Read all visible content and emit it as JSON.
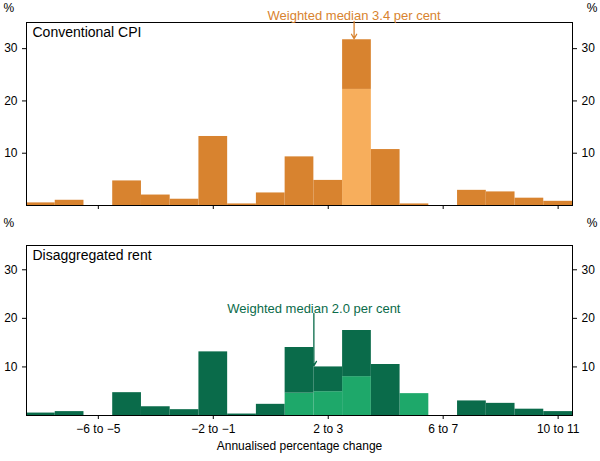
{
  "chart_data": [
    {
      "type": "histogram",
      "title": "Conventional CPI",
      "bins": [
        -8,
        -7,
        -6,
        -5,
        -4,
        -3,
        -2,
        -1,
        0,
        1,
        2,
        3,
        4,
        5,
        6,
        7,
        8,
        9,
        10,
        11
      ],
      "series": [
        {
          "color": "#F7AE5C",
          "values": [
            0,
            0,
            0,
            0,
            0,
            0,
            0,
            0,
            0,
            0,
            0,
            22.2,
            0,
            0,
            0,
            0,
            0,
            0,
            0
          ]
        },
        {
          "color": "#D8832F",
          "values": [
            0.5,
            1.0,
            0,
            4.7,
            2.0,
            1.2,
            13.2,
            0.3,
            2.4,
            9.3,
            4.8,
            9.5,
            10.7,
            0.3,
            0,
            2.9,
            2.6,
            1.4,
            0.8
          ]
        }
      ],
      "stacked": true,
      "xlim": [
        -8,
        11
      ],
      "xticks": [
        {
          "value": -5.5,
          "label": "−6 to −5"
        },
        {
          "value": -1.5,
          "label": "−2 to −1"
        },
        {
          "value": 2.5,
          "label": "2 to 3"
        },
        {
          "value": 6.5,
          "label": "6 to 7"
        },
        {
          "value": 10.5,
          "label": "10 to 11"
        }
      ],
      "y_label": "%",
      "ylim": [
        0,
        35
      ],
      "yticks": [
        10,
        20,
        30
      ],
      "grid": false,
      "tick_labels": "y",
      "annotations": [
        {
          "text": "Weighted median 3.4 per cent",
          "x": 3.4,
          "y": 31.7,
          "color": "#D8832F"
        }
      ]
    },
    {
      "type": "histogram",
      "title": "Disaggregated rent",
      "bins": [
        -8,
        -7,
        -6,
        -5,
        -4,
        -3,
        -2,
        -1,
        0,
        1,
        2,
        3,
        4,
        5,
        6,
        7,
        8,
        9,
        10,
        11
      ],
      "series": [
        {
          "color": "#1EA86A",
          "values": [
            0,
            0,
            0,
            0,
            0,
            0,
            0,
            0,
            0,
            4.6,
            4.9,
            8.0,
            0,
            4.5,
            0,
            0,
            0,
            0,
            0
          ]
        },
        {
          "color": "#0A6B4A",
          "values": [
            0.5,
            0.8,
            0,
            4.7,
            1.8,
            1.2,
            13.1,
            0.3,
            2.3,
            9.4,
            5.1,
            9.5,
            10.5,
            0,
            0,
            3.0,
            2.5,
            1.3,
            0.8
          ]
        }
      ],
      "stacked": true,
      "xlim": [
        -8,
        11
      ],
      "xticks": [
        {
          "value": -5.5,
          "label": "−6 to −5"
        },
        {
          "value": -1.5,
          "label": "−2 to −1"
        },
        {
          "value": 2.5,
          "label": "2 to 3"
        },
        {
          "value": 6.5,
          "label": "6 to 7"
        },
        {
          "value": 10.5,
          "label": "10 to 11"
        }
      ],
      "x_label": "Annualised percentage change",
      "y_label": "%",
      "ylim": [
        0,
        35
      ],
      "yticks": [
        10,
        20,
        30
      ],
      "grid": false,
      "annotations": [
        {
          "text": "Weighted median 2.0 per cent",
          "x": 2.0,
          "y": 10.0,
          "color": "#0A6B4A"
        }
      ]
    }
  ]
}
